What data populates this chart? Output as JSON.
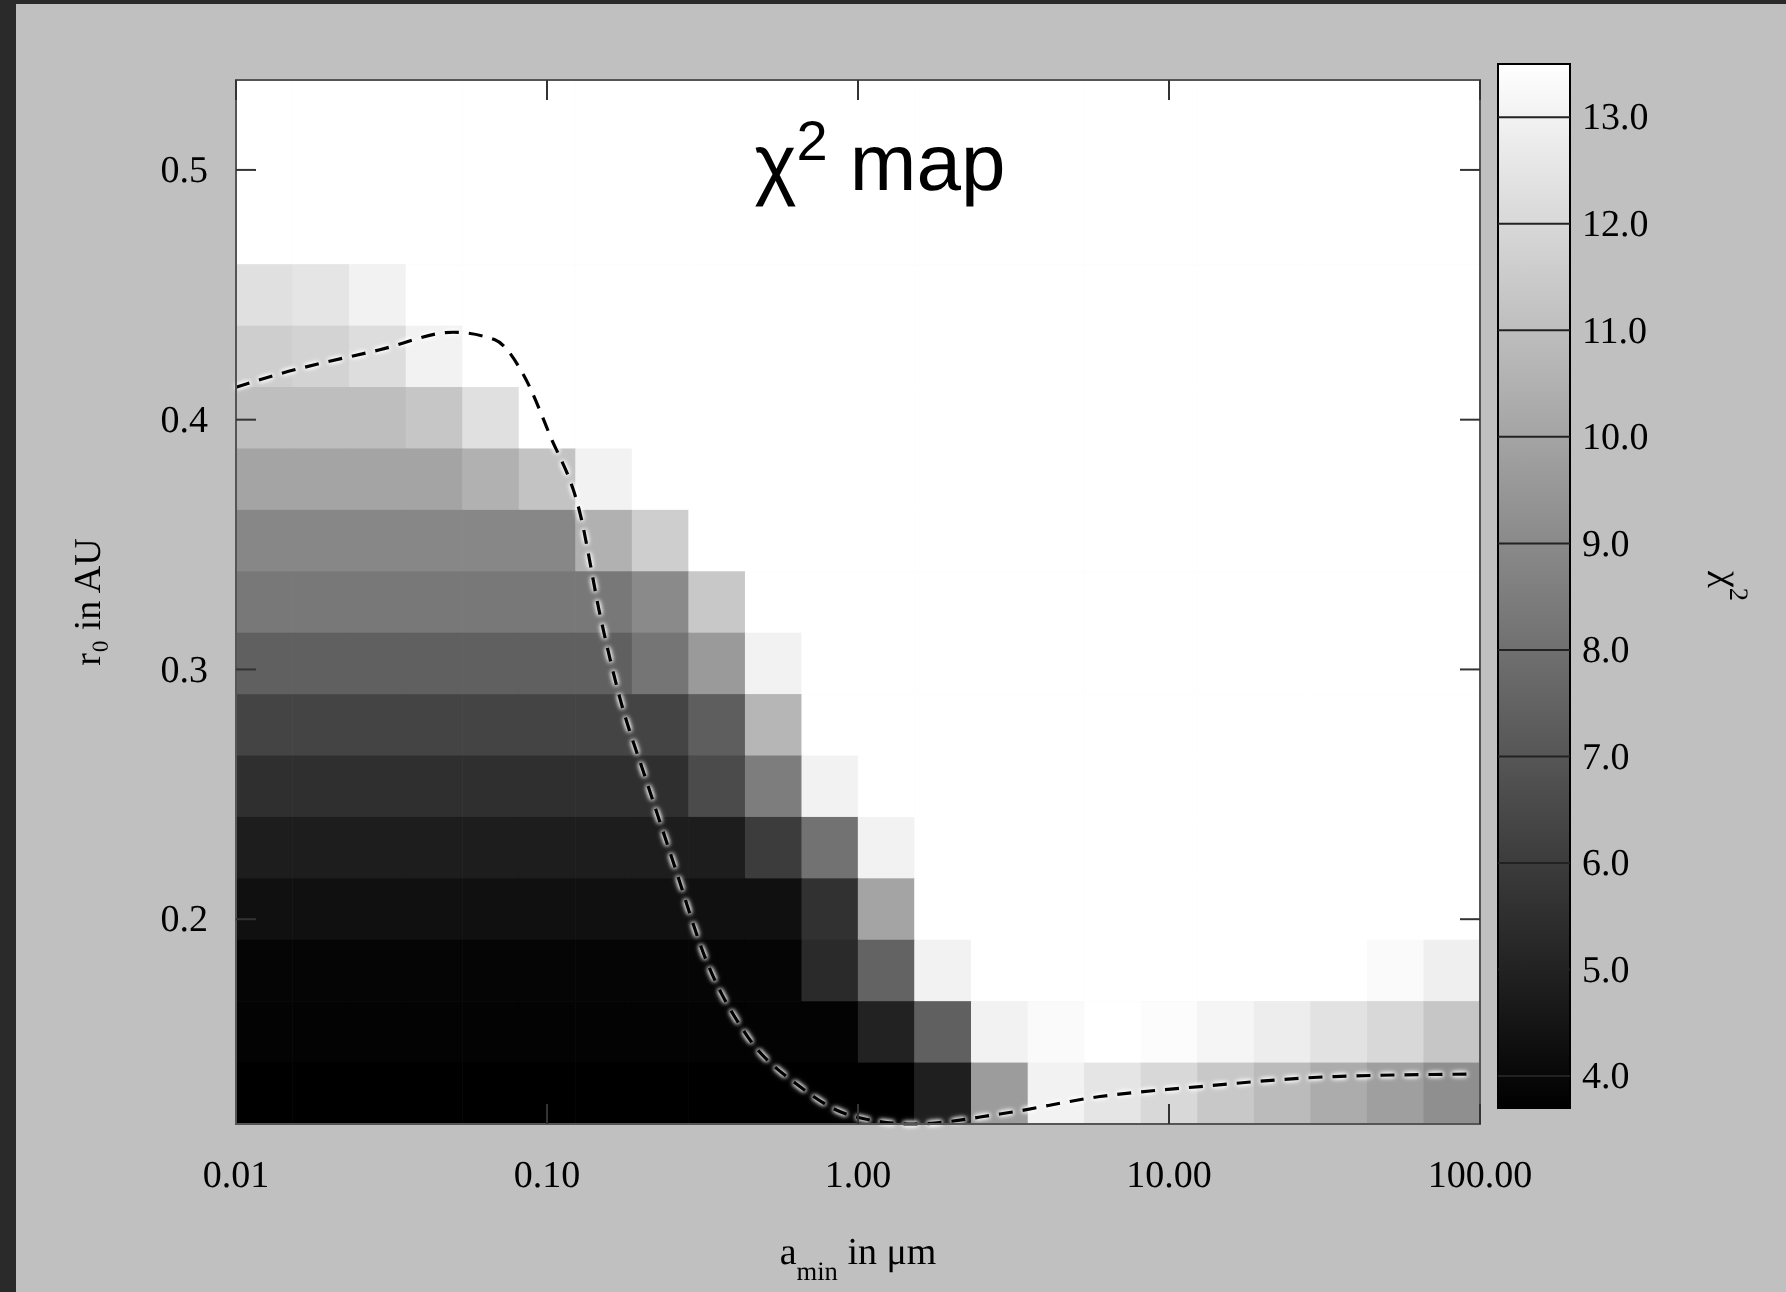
{
  "chart_data": {
    "type": "heatmap",
    "title": "χ$^{2}$ map",
    "xlabel": "a$_{min}$ in μm",
    "ylabel": "r₀ in AU",
    "clabel": "χ$^{2}$",
    "log": "x",
    "xlim": [
      0.01,
      100
    ],
    "ylim": [
      0.118,
      0.536
    ],
    "xticks": [
      0.01,
      {
        "value": 0.1,
        "label": "0.10"
      },
      {
        "value": 1,
        "label": "1.00"
      },
      {
        "value": 10,
        "label": "10.00"
      },
      {
        "value": 100,
        "label": "100.00"
      }
    ],
    "yticks": [
      0.2,
      0.3,
      0.4,
      0.5
    ],
    "clim": [
      3.7,
      13.5
    ],
    "cticks": [
      {
        "value": 4,
        "label": "4.0"
      },
      {
        "value": 5,
        "label": "5.0"
      },
      {
        "value": 6,
        "label": "6.0"
      },
      {
        "value": 7,
        "label": "7.0"
      },
      {
        "value": 8,
        "label": "8.0"
      },
      {
        "value": 9,
        "label": "9.0"
      },
      {
        "value": 10,
        "label": "10.0"
      },
      {
        "value": 11,
        "label": "11.0"
      },
      {
        "value": 12,
        "label": "12.0"
      },
      {
        "value": 13,
        "label": "13.0"
      }
    ],
    "x": [
      0.0123,
      0.0187,
      0.0285,
      0.0433,
      0.0658,
      0.1,
      0.152,
      0.231,
      0.351,
      0.534,
      0.811,
      1.23,
      1.87,
      2.85,
      4.33,
      6.58,
      10,
      15.2,
      23.1,
      35.1,
      53.4,
      81.1
    ],
    "cells": [
      [
        13.5,
        13.5,
        13.5,
        13.5,
        13.5,
        13.5,
        13.5,
        13.5,
        13.5,
        13.5,
        13.5,
        13.5,
        13.5,
        13.5,
        13.5,
        13.5,
        13.5,
        13.5,
        13.5,
        13.5,
        13.5,
        13.5
      ],
      [
        13.5,
        13.5,
        13.5,
        13.5,
        13.5,
        13.5,
        13.5,
        13.5,
        13.5,
        13.5,
        13.5,
        13.5,
        13.5,
        13.5,
        13.5,
        13.5,
        13.5,
        13.5,
        13.5,
        13.5,
        13.5,
        13.5
      ],
      [
        13.5,
        13.5,
        13.5,
        13.5,
        13.5,
        13.5,
        13.5,
        13.5,
        13.5,
        13.5,
        13.5,
        13.5,
        13.5,
        13.5,
        13.5,
        13.5,
        13.5,
        13.5,
        13.5,
        13.5,
        13.5,
        13.5
      ],
      [
        12.3,
        12.5,
        13.0,
        13.5,
        13.5,
        13.5,
        13.5,
        13.5,
        13.5,
        13.5,
        13.5,
        13.5,
        13.5,
        13.5,
        13.5,
        13.5,
        13.5,
        13.5,
        13.5,
        13.5,
        13.5,
        13.5
      ],
      [
        11.6,
        11.8,
        12.2,
        13.0,
        13.5,
        13.5,
        13.5,
        13.5,
        13.5,
        13.5,
        13.5,
        13.5,
        13.5,
        13.5,
        13.5,
        13.5,
        13.5,
        13.5,
        13.5,
        13.5,
        13.5,
        13.5
      ],
      [
        11.0,
        11.0,
        11.0,
        11.3,
        12.3,
        13.5,
        13.5,
        13.5,
        13.5,
        13.5,
        13.5,
        13.5,
        13.5,
        13.5,
        13.5,
        13.5,
        13.5,
        13.5,
        13.5,
        13.5,
        13.5,
        13.5
      ],
      [
        10.0,
        10.0,
        10.0,
        10.0,
        10.5,
        11.2,
        13.0,
        13.5,
        13.5,
        13.5,
        13.5,
        13.5,
        13.5,
        13.5,
        13.5,
        13.5,
        13.5,
        13.5,
        13.5,
        13.5,
        13.5,
        13.5
      ],
      [
        8.9,
        8.9,
        8.9,
        8.9,
        8.9,
        8.9,
        10.5,
        11.6,
        13.5,
        13.5,
        13.5,
        13.5,
        13.5,
        13.5,
        13.5,
        13.5,
        13.5,
        13.5,
        13.5,
        13.5,
        13.5,
        13.5
      ],
      [
        8.3,
        8.3,
        8.3,
        8.3,
        8.3,
        8.3,
        8.3,
        9.0,
        11.4,
        13.5,
        13.5,
        13.5,
        13.5,
        13.5,
        13.5,
        13.5,
        13.5,
        13.5,
        13.5,
        13.5,
        13.5,
        13.5
      ],
      [
        7.4,
        7.4,
        7.4,
        7.4,
        7.4,
        7.4,
        7.4,
        8.2,
        9.6,
        13.0,
        13.5,
        13.5,
        13.5,
        13.5,
        13.5,
        13.5,
        13.5,
        13.5,
        13.5,
        13.5,
        13.5,
        13.5
      ],
      [
        6.3,
        6.3,
        6.3,
        6.3,
        6.3,
        6.3,
        6.3,
        6.3,
        7.3,
        10.7,
        13.5,
        13.5,
        13.5,
        13.5,
        13.5,
        13.5,
        13.5,
        13.5,
        13.5,
        13.5,
        13.5,
        13.5
      ],
      [
        5.5,
        5.5,
        5.5,
        5.5,
        5.5,
        5.5,
        5.5,
        5.5,
        6.6,
        8.5,
        13.0,
        13.5,
        13.5,
        13.5,
        13.5,
        13.5,
        13.5,
        13.5,
        13.5,
        13.5,
        13.5,
        13.5
      ],
      [
        4.8,
        4.8,
        4.8,
        4.8,
        4.8,
        4.8,
        4.8,
        4.8,
        4.8,
        6.0,
        8.1,
        13.0,
        13.5,
        13.5,
        13.5,
        13.5,
        13.5,
        13.5,
        13.5,
        13.5,
        13.5,
        13.5
      ],
      [
        4.3,
        4.3,
        4.3,
        4.3,
        4.3,
        4.3,
        4.3,
        4.3,
        4.3,
        4.3,
        5.6,
        10.0,
        13.5,
        13.5,
        13.5,
        13.5,
        13.5,
        13.5,
        13.5,
        13.5,
        13.5,
        13.5
      ],
      [
        3.9,
        3.9,
        3.9,
        3.9,
        3.9,
        3.9,
        3.9,
        3.9,
        3.9,
        3.9,
        5.3,
        7.5,
        13.0,
        13.5,
        13.5,
        13.5,
        13.5,
        13.5,
        13.5,
        13.5,
        13.3,
        12.9
      ],
      [
        3.8,
        3.8,
        3.8,
        3.8,
        3.8,
        3.8,
        3.8,
        3.8,
        3.8,
        3.8,
        3.8,
        5.0,
        7.4,
        13.0,
        13.3,
        13.5,
        13.4,
        13.1,
        12.8,
        12.4,
        12.0,
        11.3
      ],
      [
        3.7,
        3.7,
        3.7,
        3.7,
        3.7,
        3.7,
        3.7,
        3.7,
        3.7,
        3.7,
        3.7,
        3.7,
        4.9,
        9.7,
        13.0,
        12.5,
        12.0,
        11.4,
        10.9,
        10.3,
        9.8,
        9.2
      ]
    ],
    "series": [
      {
        "type": "line",
        "color": "#000000",
        "line_style": "dashed",
        "x": [
          0.01,
          0.0135,
          0.029,
          0.05,
          0.068,
          0.084,
          0.102,
          0.128,
          0.148,
          0.172,
          0.208,
          0.256,
          0.324,
          0.436,
          0.65,
          0.97,
          1.51,
          2.86,
          6.0,
          12.6,
          34,
          97
        ],
        "values": [
          0.413,
          0.418,
          0.428,
          0.435,
          0.432,
          0.418,
          0.394,
          0.362,
          0.322,
          0.288,
          0.256,
          0.222,
          0.184,
          0.154,
          0.133,
          0.121,
          0.118,
          0.122,
          0.129,
          0.133,
          0.137,
          0.138
        ]
      }
    ]
  }
}
